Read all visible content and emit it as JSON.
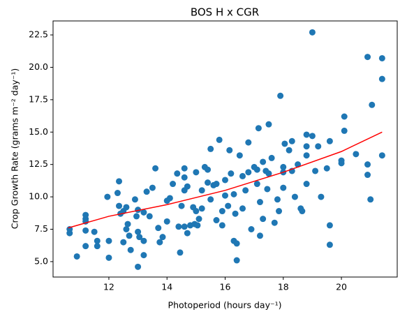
{
  "chart_data": {
    "type": "scatter",
    "title": "BOS H x CGR",
    "x_label": "Photoperiod (hours day⁻¹)",
    "y_label": "Crop Growth Rate (grams m⁻² day⁻¹)",
    "xlim": [
      10.08,
      21.92
    ],
    "xticks": [
      12,
      14,
      16,
      18,
      20
    ],
    "ylim": [
      3.81,
      23.58
    ],
    "yticks": [
      {
        "value": 5,
        "label": "5.0"
      },
      7.5,
      {
        "value": 10,
        "label": "10.0"
      },
      12.5,
      {
        "value": 15,
        "label": "15.0"
      },
      17.5,
      {
        "value": 20,
        "label": "20.0"
      },
      22.5
    ],
    "series": [
      {
        "type": "scatter",
        "color": "#1f77b4",
        "x": [
          10.65,
          10.65,
          10.9,
          11.2,
          11.2,
          11.2,
          11.2,
          11.2,
          11.5,
          11.6,
          11.6,
          11.95,
          12.0,
          12.0,
          12.3,
          12.35,
          12.35,
          12.4,
          12.5,
          12.5,
          12.6,
          12.6,
          12.65,
          12.7,
          12.75,
          12.9,
          12.95,
          13.0,
          13.0,
          13.05,
          13.0,
          13.2,
          13.2,
          13.2,
          13.3,
          13.4,
          13.5,
          13.6,
          13.7,
          13.75,
          13.85,
          14.0,
          14.0,
          14.1,
          14.2,
          14.35,
          14.4,
          14.45,
          14.5,
          14.6,
          14.6,
          14.6,
          14.6,
          14.7,
          14.7,
          14.8,
          14.9,
          14.95,
          15.0,
          15.0,
          15.05,
          15.1,
          15.2,
          15.2,
          15.3,
          15.4,
          15.4,
          15.5,
          15.5,
          15.6,
          15.7,
          15.7,
          15.8,
          15.9,
          15.9,
          16.0,
          16.0,
          16.1,
          16.15,
          16.2,
          16.3,
          16.3,
          16.35,
          16.4,
          16.4,
          16.5,
          16.6,
          16.6,
          16.7,
          16.8,
          16.8,
          16.9,
          17.0,
          17.1,
          17.1,
          17.15,
          17.2,
          17.2,
          17.3,
          17.3,
          17.4,
          17.45,
          17.5,
          17.5,
          17.6,
          17.7,
          17.8,
          17.85,
          17.9,
          18.0,
          18.0,
          18.0,
          18.05,
          18.2,
          18.3,
          18.3,
          18.4,
          18.5,
          18.6,
          18.65,
          18.8,
          18.8,
          18.8,
          18.8,
          19.0,
          19.0,
          19.1,
          19.2,
          19.3,
          19.5,
          19.6,
          19.6,
          19.6,
          20.0,
          20.0,
          20.1,
          20.1,
          20.5,
          20.9,
          20.9,
          20.9,
          21.0,
          21.05,
          21.4,
          21.4,
          21.4
        ],
        "values": [
          7.5,
          7.2,
          5.4,
          8.6,
          8.3,
          8.1,
          7.4,
          6.2,
          7.3,
          6.6,
          6.2,
          10.0,
          6.6,
          5.3,
          10.3,
          11.2,
          9.3,
          8.7,
          8.9,
          6.5,
          9.2,
          7.5,
          7.9,
          7.0,
          5.9,
          9.8,
          8.5,
          9.0,
          7.3,
          6.9,
          4.6,
          8.8,
          6.6,
          5.5,
          10.4,
          8.5,
          10.7,
          12.2,
          7.6,
          6.5,
          6.9,
          9.7,
          8.1,
          9.9,
          11.0,
          11.8,
          7.7,
          5.7,
          9.3,
          12.2,
          11.5,
          10.5,
          7.7,
          10.8,
          7.2,
          7.8,
          9.2,
          7.9,
          11.9,
          8.9,
          7.8,
          8.3,
          10.5,
          9.1,
          12.3,
          12.1,
          11.1,
          13.7,
          9.8,
          10.9,
          11.0,
          8.2,
          14.4,
          8.9,
          7.8,
          11.3,
          10.1,
          9.3,
          13.6,
          11.8,
          10.2,
          6.6,
          8.7,
          6.4,
          5.1,
          13.2,
          11.6,
          9.1,
          10.5,
          14.2,
          11.9,
          7.5,
          12.3,
          11.0,
          12.1,
          15.3,
          9.6,
          7.0,
          12.7,
          8.3,
          12.0,
          10.6,
          15.6,
          11.8,
          13.0,
          8.0,
          9.8,
          8.9,
          17.8,
          12.3,
          11.9,
          10.7,
          14.1,
          13.6,
          14.3,
          12.0,
          10.0,
          12.5,
          9.1,
          8.9,
          14.8,
          13.9,
          13.2,
          11.0,
          22.7,
          14.7,
          12.0,
          13.9,
          10.0,
          12.2,
          14.3,
          7.8,
          6.3,
          12.8,
          12.6,
          16.2,
          15.1,
          13.3,
          20.8,
          12.5,
          11.7,
          9.8,
          17.1,
          20.7,
          19.1,
          13.2
        ]
      },
      {
        "type": "line",
        "color": "#ff0000",
        "x": [
          10.6,
          12,
          14,
          16,
          18,
          20,
          21.4
        ],
        "values": [
          7.6,
          8.5,
          9.4,
          10.5,
          11.9,
          13.5,
          15.0
        ]
      }
    ]
  }
}
